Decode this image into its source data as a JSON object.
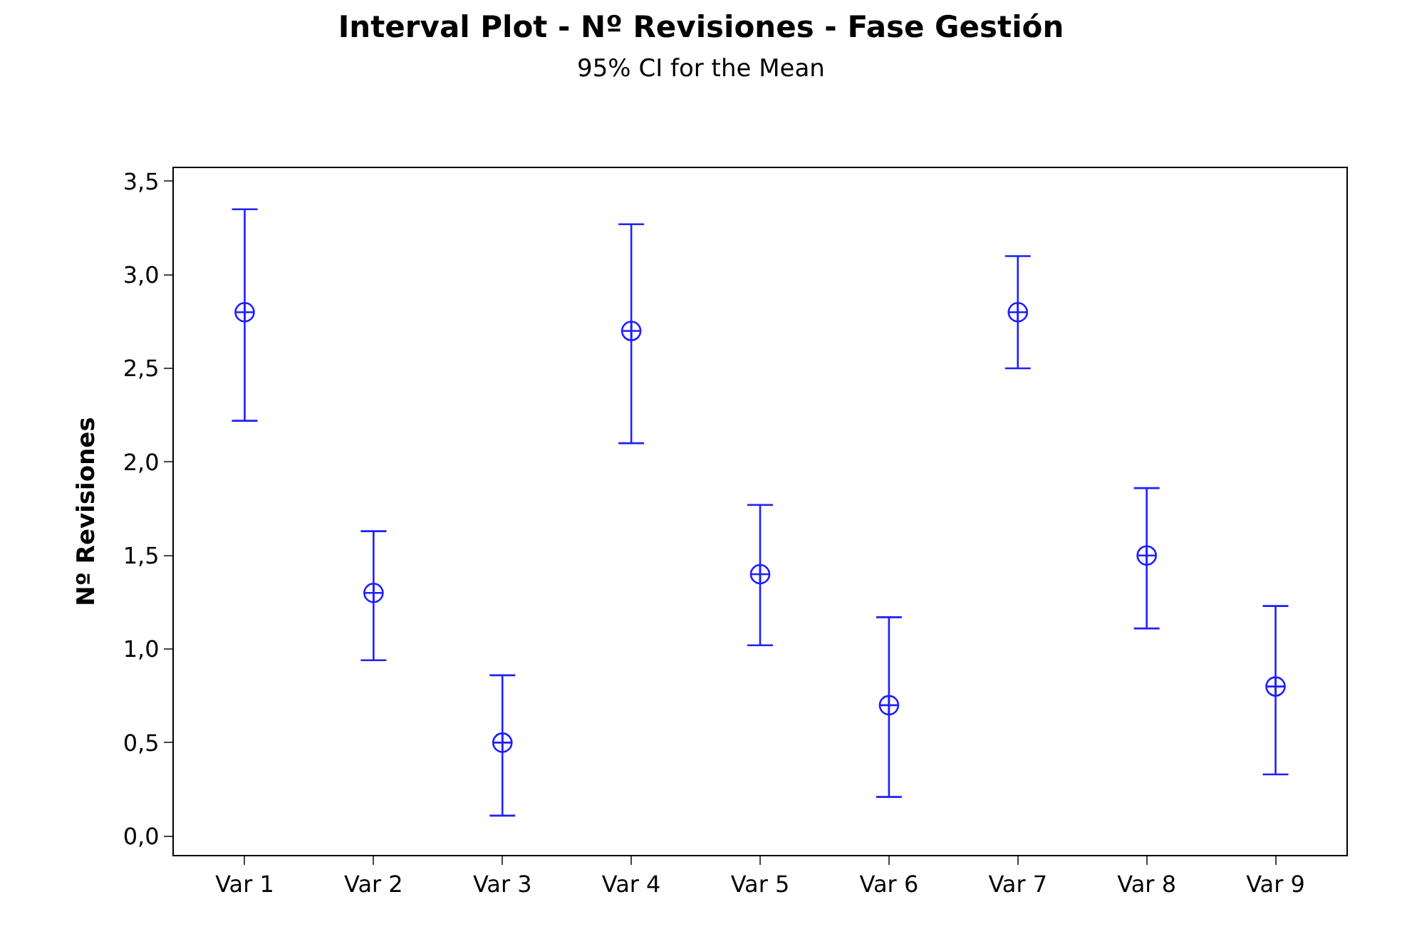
{
  "chart_data": {
    "type": "scatter",
    "title": "Interval Plot - Nº Revisiones - Fase Gestión",
    "subtitle": "95% CI for the Mean",
    "ylabel": "Nº Revisiones",
    "categories": [
      "Var 1",
      "Var 2",
      "Var 3",
      "Var 4",
      "Var 5",
      "Var 6",
      "Var 7",
      "Var 8",
      "Var 9"
    ],
    "series": [
      {
        "color": "#1f1fff",
        "values": [
          2.8,
          1.3,
          0.5,
          2.7,
          1.4,
          0.7,
          2.8,
          1.5,
          0.8
        ],
        "errors": [
          [
            2.22,
            3.35
          ],
          [
            0.94,
            1.63
          ],
          [
            0.11,
            0.86
          ],
          [
            2.1,
            3.27
          ],
          [
            1.02,
            1.77
          ],
          [
            0.21,
            1.17
          ],
          [
            2.5,
            3.1
          ],
          [
            1.11,
            1.86
          ],
          [
            0.33,
            1.23
          ]
        ]
      }
    ],
    "ylim": [
      -0.1,
      3.57
    ],
    "yticks": [
      {
        "value": 0,
        "label": "0,0"
      },
      {
        "value": 0.5,
        "label": "0,5"
      },
      {
        "value": 1,
        "label": "1,0"
      },
      {
        "value": 1.5,
        "label": "1,5"
      },
      {
        "value": 2,
        "label": "2,0"
      },
      {
        "value": 2.5,
        "label": "2,5"
      },
      {
        "value": 3,
        "label": "3,0"
      },
      {
        "value": 3.5,
        "label": "3,5"
      }
    ],
    "marker": "cross"
  }
}
